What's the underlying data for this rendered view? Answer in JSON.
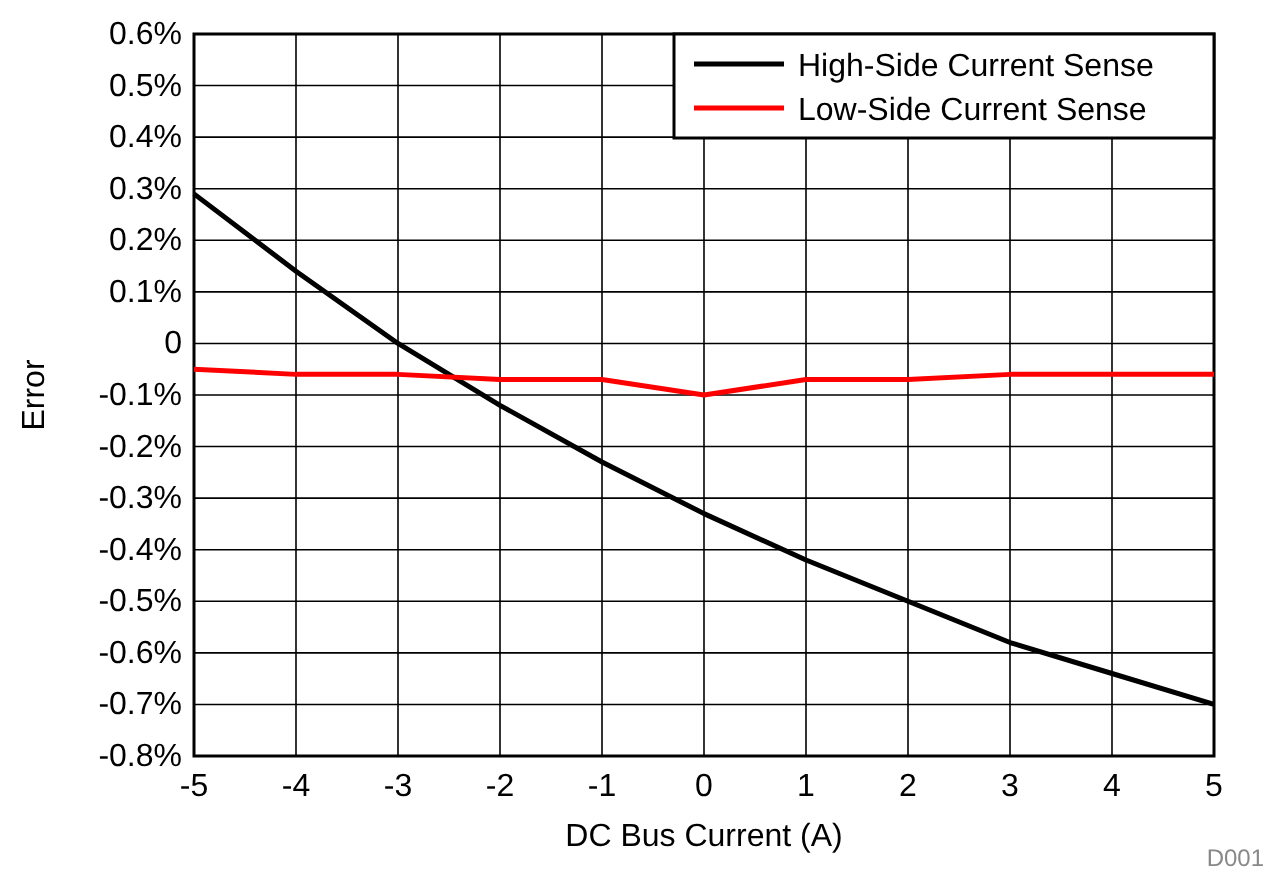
{
  "chart_data": {
    "type": "line",
    "xlabel": "DC Bus Current (A)",
    "ylabel": "Error",
    "x": [
      -5,
      -4,
      -3,
      -2,
      -1,
      0,
      1,
      2,
      3,
      4,
      5
    ],
    "series": [
      {
        "name": "High-Side Current Sense",
        "color": "#000000",
        "values": [
          0.29,
          0.14,
          0.0,
          -0.12,
          -0.23,
          -0.33,
          -0.42,
          -0.5,
          -0.58,
          -0.64,
          -0.7
        ]
      },
      {
        "name": "Low-Side Current Sense",
        "color": "#ff0000",
        "values": [
          -0.05,
          -0.06,
          -0.06,
          -0.07,
          -0.07,
          -0.1,
          -0.07,
          -0.07,
          -0.06,
          -0.06,
          -0.06
        ]
      }
    ],
    "xlim": [
      -5,
      5
    ],
    "xticks": [
      -5,
      -4,
      -3,
      -2,
      -1,
      0,
      1,
      2,
      3,
      4,
      5
    ],
    "ylim": [
      -0.8,
      0.6
    ],
    "yticks": [
      {
        "value": -0.8,
        "label": "-0.8%"
      },
      {
        "value": -0.7,
        "label": "-0.7%"
      },
      {
        "value": -0.6,
        "label": "-0.6%"
      },
      {
        "value": -0.5,
        "label": "-0.5%"
      },
      {
        "value": -0.4,
        "label": "-0.4%"
      },
      {
        "value": -0.3,
        "label": "-0.3%"
      },
      {
        "value": -0.2,
        "label": "-0.2%"
      },
      {
        "value": -0.1,
        "label": "-0.1%"
      },
      0,
      {
        "value": 0.1,
        "label": "0.1%"
      },
      {
        "value": 0.2,
        "label": "0.2%"
      },
      {
        "value": 0.3,
        "label": "0.3%"
      },
      {
        "value": 0.4,
        "label": "0.4%"
      },
      {
        "value": 0.5,
        "label": "0.5%"
      },
      {
        "value": 0.6,
        "label": "0.6%"
      }
    ],
    "grid": true,
    "legend": "top right",
    "marker": "none",
    "line_style": "solid",
    "annotations": [
      "D001"
    ]
  }
}
